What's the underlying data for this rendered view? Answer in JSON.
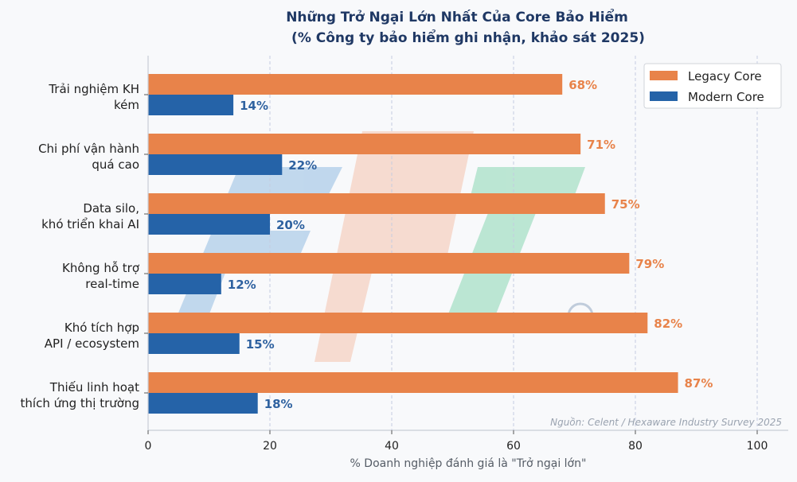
{
  "chart_data": {
    "type": "bar",
    "orientation": "horizontal",
    "title": "Những Trở Ngại Lớn Nhất Của Core Bảo Hiểm",
    "subtitle": "(% Công ty bảo hiểm ghi nhận, khảo sát 2025)",
    "xlabel": "% Doanh nghiệp đánh giá là \"Trở ngại lớn\"",
    "ylabel": "",
    "xlim": [
      0,
      105
    ],
    "xticks": [
      0,
      20,
      40,
      60,
      80,
      100
    ],
    "grid": "vertical dashed",
    "legend_position": "top-right",
    "categories": [
      [
        "Trải nghiệm KH",
        "kém"
      ],
      [
        "Chi phí vận hành",
        "quá cao"
      ],
      [
        "Data silo,",
        "khó triển khai AI"
      ],
      [
        "Không hỗ trợ",
        "real-time"
      ],
      [
        "Khó tích hợp",
        "API / ecosystem"
      ],
      [
        "Thiếu linh hoạt",
        "thích ứng thị trường"
      ]
    ],
    "series": [
      {
        "name": "Legacy Core",
        "color": "#e8834a",
        "label_color": "#e8834a",
        "values": [
          68,
          71,
          75,
          79,
          82,
          87
        ]
      },
      {
        "name": "Modern Core",
        "color": "#2563a8",
        "label_color": "#2f62a0",
        "values": [
          14,
          22,
          20,
          12,
          15,
          18
        ]
      }
    ],
    "value_suffix": "%",
    "source_note": "Nguồn: Celent / Hexaware Industry Survey 2025",
    "watermark": "FPT"
  }
}
